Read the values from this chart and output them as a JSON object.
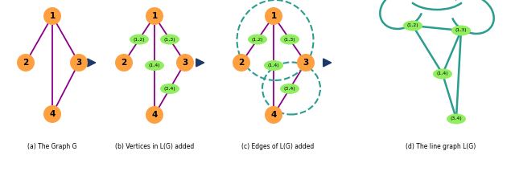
{
  "background": "#ffffff",
  "orange_color": "#FFA040",
  "green_color": "#90EE60",
  "edge_color": "#8B008B",
  "arrow_color": "#1a3a6b",
  "teal_color": "#2a9d8f",
  "dashed_teal": "#2a9d8f",
  "fig_width": 6.4,
  "fig_height": 2.44,
  "caption_a": "(a) The Graph G",
  "caption_b": "(b) Vertices in L(G) added",
  "caption_c": "(c) Edges of L(G) added",
  "caption_d": "(d) The line graph L(G)"
}
